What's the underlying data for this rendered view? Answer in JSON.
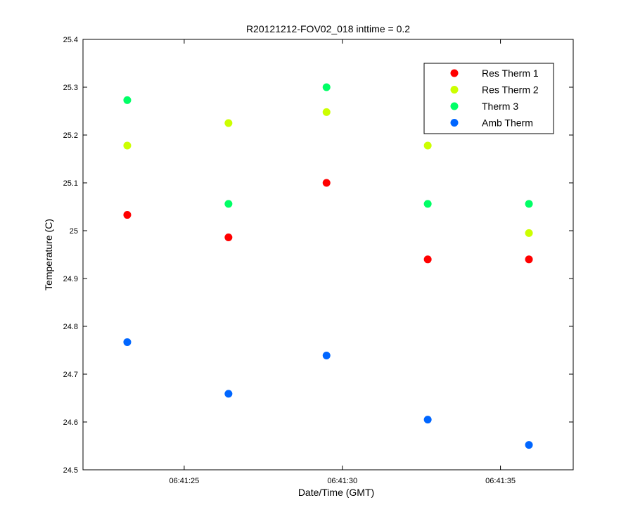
{
  "chart_data": {
    "type": "scatter",
    "title": "R20121212-FOV02_018 inttime = 0.2",
    "xlabel": "Date/Time (GMT)",
    "ylabel": "Temperature (C)",
    "x_unit": "time of day (GMT, HH:MM:SS)",
    "xlim": [
      "06:41:21.8",
      "06:41:37.3"
    ],
    "ylim": [
      24.5,
      25.4
    ],
    "x_ticks": [
      "06:41:25",
      "06:41:30",
      "06:41:35"
    ],
    "y_ticks": [
      "24.5",
      "24.6",
      "24.7",
      "24.8",
      "24.9",
      "25",
      "25.1",
      "25.2",
      "25.3",
      "25.4"
    ],
    "grid": false,
    "legend_position": "top-right",
    "x": [
      "06:41:23.2",
      "06:41:26.4",
      "06:41:29.5",
      "06:41:32.7",
      "06:41:35.9"
    ],
    "series": [
      {
        "name": "Res Therm 1",
        "color": "#ff0000",
        "values": [
          25.033,
          24.986,
          25.1,
          24.94,
          24.94
        ]
      },
      {
        "name": "Res Therm 2",
        "color": "#ccff00",
        "values": [
          25.178,
          25.225,
          25.248,
          25.178,
          24.995
        ]
      },
      {
        "name": "Therm 3",
        "color": "#00ff66",
        "values": [
          25.273,
          25.056,
          25.3,
          25.056,
          25.056
        ]
      },
      {
        "name": "Amb Therm",
        "color": "#0066ff",
        "values": [
          24.767,
          24.659,
          24.739,
          24.605,
          24.552
        ]
      }
    ]
  }
}
